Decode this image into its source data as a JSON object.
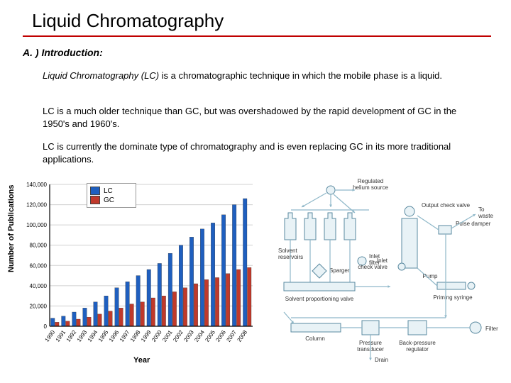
{
  "heading": "Liquid Chromatography",
  "underline_color": "#c00000",
  "section_label": "A. ) Introduction:",
  "paragraphs": {
    "p1_html": "<span class=\"lc-term\">Liquid Chromatography (LC)</span> is a chromatographic technique in which the mobile phase is a liquid.",
    "p2": "LC is a much older technique than GC, but was overshadowed by the rapid development of GC in the 1950's and 1960's.",
    "p3": "LC is currently the dominate type of chromatography and is even replacing GC in its more traditional applications."
  },
  "chart": {
    "type": "grouped-bar",
    "ylabel": "Number of Publications",
    "xlabel": "Year",
    "ylim": [
      0,
      140000
    ],
    "ytick_step": 20000,
    "yticks": [
      "0",
      "20,000",
      "40,000",
      "60,000",
      "80,000",
      "100,000",
      "120,000",
      "140,000"
    ],
    "categories": [
      "1990",
      "1991",
      "1992",
      "1993",
      "1994",
      "1995",
      "1996",
      "1997",
      "1998",
      "1999",
      "2000",
      "2001",
      "2002",
      "2003",
      "2004",
      "2005",
      "2006",
      "2007",
      "2008"
    ],
    "series": [
      {
        "name": "LC",
        "color": "#1f5fbf",
        "values": [
          8000,
          10000,
          14000,
          18000,
          24000,
          30000,
          38000,
          44000,
          50000,
          56000,
          62000,
          72000,
          80000,
          88000,
          96000,
          102000,
          110000,
          120000,
          126000
        ]
      },
      {
        "name": "GC",
        "color": "#c0392b",
        "values": [
          4000,
          5000,
          7000,
          9000,
          12000,
          15000,
          18000,
          22000,
          24000,
          28000,
          30000,
          34000,
          38000,
          42000,
          46000,
          48000,
          52000,
          56000,
          58000
        ]
      }
    ],
    "grid_color": "#d0d0d0",
    "axis_color": "#000000",
    "background_color": "#ffffff",
    "tick_fontsize": 8,
    "label_fontsize": 11,
    "bar_group_width": 0.8
  },
  "diagram": {
    "type": "flowchart",
    "line_color": "#8fb8c9",
    "node_stroke": "#5a8aa0",
    "node_fill": "#e8f2f6",
    "label_color": "#333333",
    "label_fontsize": 8,
    "labels": {
      "regulated": "Regulated\nhelium source",
      "solvent": "Solvent\nreservoirs",
      "sparger": "Sparger",
      "inlet_filter": "Inlet\nfilter",
      "prop_valve": "Solvent proportioning valve",
      "output_valve": "Output check valve",
      "pulse": "Pulse damper",
      "inlet_valve": "Inlet\ncheck valve",
      "pump": "Pump",
      "to_waste": "To\nwaste",
      "priming": "Priming syringe",
      "column": "Column",
      "pressure": "Pressure\ntransducer",
      "backpressure": "Back-pressure\nregulator",
      "filter": "Filter",
      "drain": "Drain"
    }
  }
}
